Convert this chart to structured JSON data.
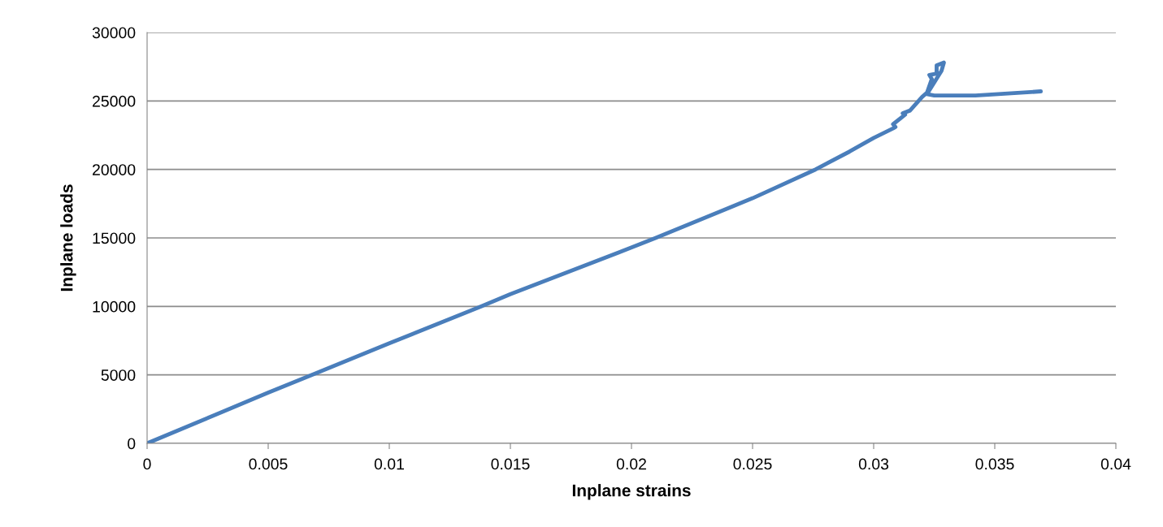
{
  "chart_data": {
    "type": "line",
    "xlabel": "Inplane strains",
    "ylabel": "Inplane loads",
    "xlim": [
      0,
      0.04
    ],
    "xticks": [
      0,
      0.005,
      0.01,
      0.015,
      0.02,
      0.025,
      0.03,
      0.035,
      0.04
    ],
    "ylim": [
      0,
      30000
    ],
    "yticks": [
      0,
      5000,
      10000,
      15000,
      20000,
      25000,
      30000
    ],
    "grid": "y",
    "legend": false,
    "marker": "none",
    "line_style": "solid",
    "series": [
      {
        "color": "#4a7ebb",
        "x": [
          0,
          0.005,
          0.0068,
          0.01,
          0.0138,
          0.015,
          0.02,
          0.021,
          0.025,
          0.0276,
          0.029,
          0.03,
          0.0308,
          0.0309,
          0.0308,
          0.0313,
          0.0312,
          0.0315,
          0.032,
          0.0322,
          0.0324,
          0.0323,
          0.0326,
          0.0326,
          0.0329,
          0.0328,
          0.0322,
          0.0325,
          0.0342,
          0.0369
        ],
        "values": [
          0,
          3700,
          5000,
          7300,
          10000,
          10900,
          14300,
          15000,
          17900,
          20000,
          21300,
          22300,
          23000,
          23100,
          23300,
          24000,
          24100,
          24300,
          25300,
          25600,
          26600,
          26900,
          27000,
          27600,
          27800,
          27200,
          25500,
          25400,
          25400,
          25700
        ]
      }
    ]
  }
}
